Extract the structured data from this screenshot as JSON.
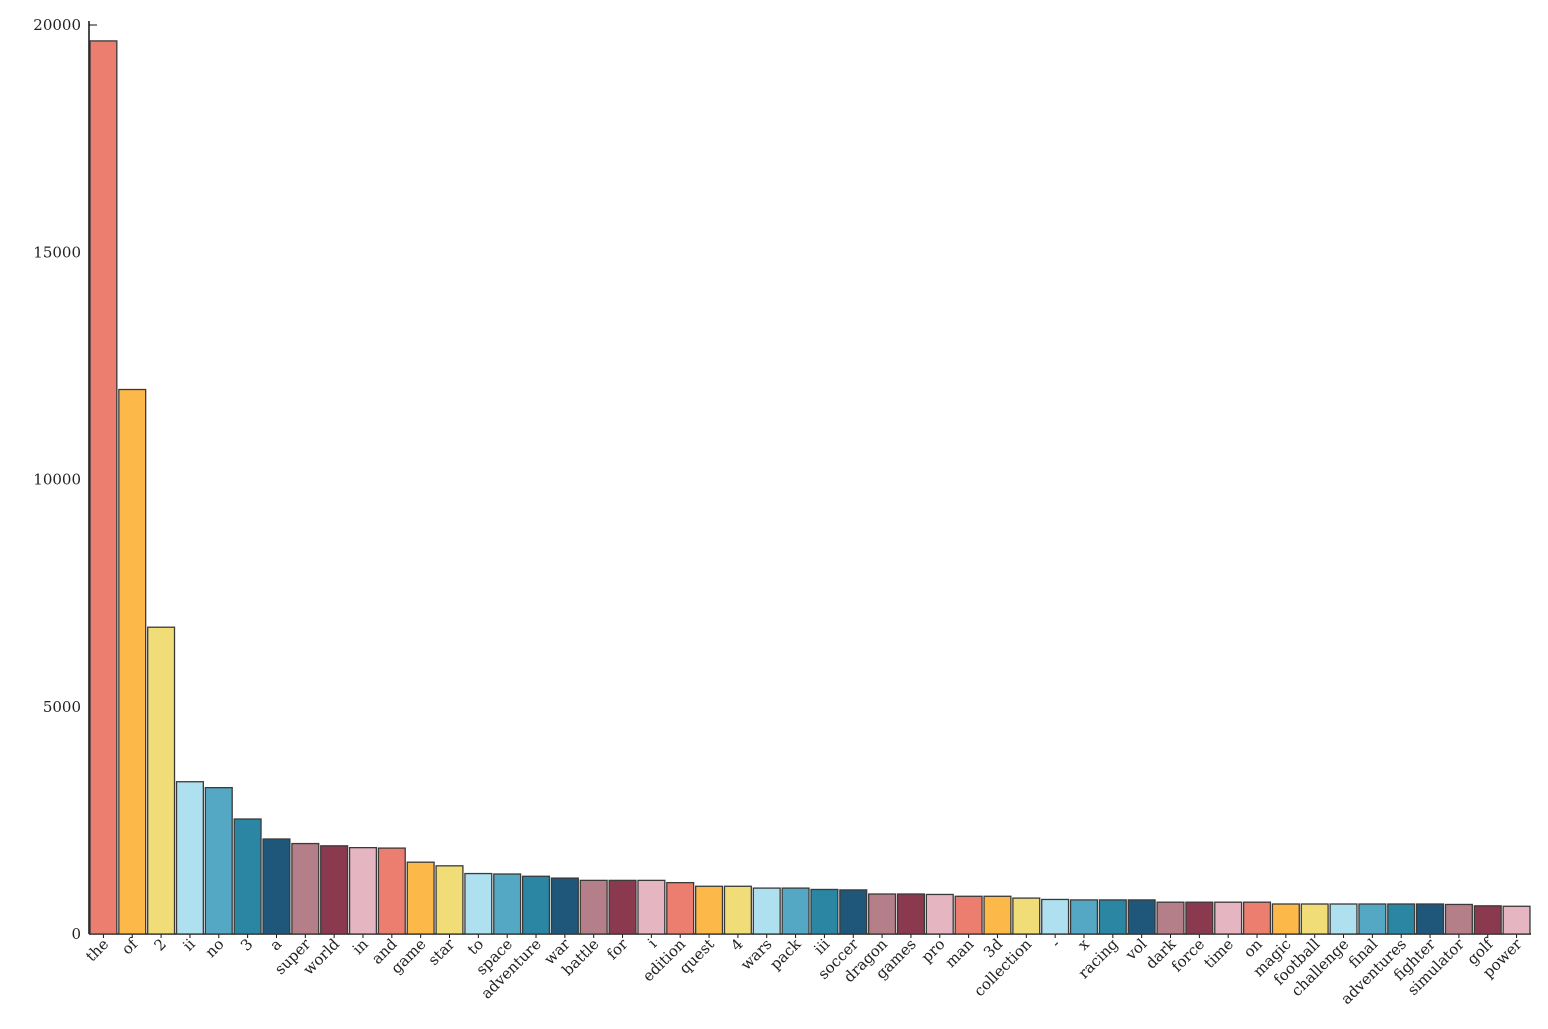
{
  "chart_data": {
    "type": "bar",
    "title": "",
    "xlabel": "",
    "ylabel": "",
    "ylim": [
      0,
      20000
    ],
    "yticks": [
      "0",
      "5000",
      "10000",
      "15000",
      "20000"
    ],
    "grid": false,
    "legend": "none",
    "palette": [
      "#eb7e6e",
      "#fdb84a",
      "#f1dd77",
      "#aee0ef",
      "#55a8c3",
      "#2a86a2",
      "#1e577a",
      "#b57f89",
      "#8b394f",
      "#e6b5c2"
    ],
    "categories": [
      "the",
      "of",
      "2",
      "ii",
      "no",
      "3",
      "a",
      "super",
      "world",
      "in",
      "and",
      "game",
      "star",
      "to",
      "space",
      "adventure",
      "war",
      "battle",
      "for",
      "i",
      "edition",
      "quest",
      "4",
      "wars",
      "pack",
      "iii",
      "soccer",
      "dragon",
      "games",
      "pro",
      "man",
      "3d",
      "collection",
      "-",
      "x",
      "racing",
      "vol",
      "dark",
      "force",
      "time",
      "on",
      "magic",
      "football",
      "challenge",
      "final",
      "adventures",
      "fighter",
      "simulator",
      "golf",
      "power"
    ],
    "values": [
      19650,
      11980,
      6750,
      3350,
      3220,
      2530,
      2090,
      1990,
      1940,
      1900,
      1890,
      1580,
      1500,
      1330,
      1320,
      1270,
      1230,
      1180,
      1180,
      1180,
      1130,
      1050,
      1050,
      1010,
      1010,
      980,
      970,
      880,
      880,
      870,
      830,
      830,
      790,
      760,
      750,
      750,
      750,
      700,
      700,
      700,
      700,
      660,
      660,
      660,
      660,
      660,
      660,
      650,
      620,
      610
    ]
  }
}
